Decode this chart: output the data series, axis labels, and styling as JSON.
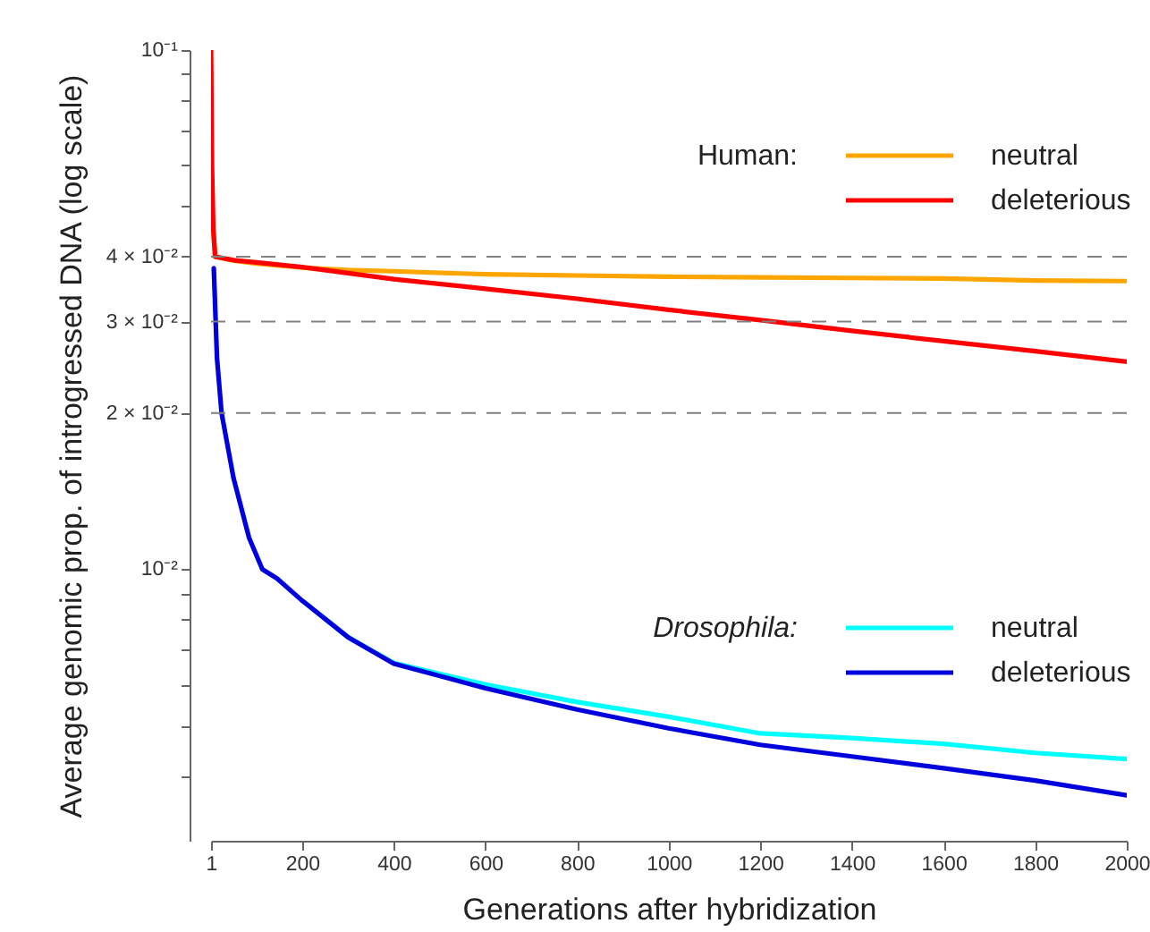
{
  "chart_data": {
    "type": "line",
    "xlabel": "Generations after hybridization",
    "ylabel": "Average genomic prop. of introgressed DNA (log scale)",
    "log": "y",
    "xlim": [
      1,
      2000
    ],
    "xticks": [
      1,
      200,
      400,
      600,
      800,
      1000,
      1200,
      1400,
      1600,
      1800,
      2000
    ],
    "ylim": [
      0.003,
      0.1
    ],
    "yticks": [
      {
        "value": 0.1,
        "label": "10⁻¹"
      },
      {
        "value": 0.09,
        "label": null
      },
      {
        "value": 0.08,
        "label": null
      },
      {
        "value": 0.07,
        "label": null
      },
      {
        "value": 0.06,
        "label": null
      },
      {
        "value": 0.05,
        "label": null
      },
      {
        "value": 0.04,
        "label": "4 × 10⁻²"
      },
      {
        "value": 0.03,
        "label": "3 × 10⁻²"
      },
      {
        "value": 0.02,
        "label": "2 × 10⁻²"
      },
      {
        "value": 0.01,
        "label": "10⁻²"
      },
      {
        "value": 0.009,
        "label": null
      },
      {
        "value": 0.008,
        "label": null
      },
      {
        "value": 0.007,
        "label": null
      },
      {
        "value": 0.006,
        "label": null
      },
      {
        "value": 0.005,
        "label": null
      },
      {
        "value": 0.004,
        "label": null
      }
    ],
    "ref_lines": [
      {
        "axis": "y",
        "value": 0.04,
        "color": "#808080",
        "line_style": "dashed"
      },
      {
        "axis": "y",
        "value": 0.03,
        "color": "#808080",
        "line_style": "dashed"
      },
      {
        "axis": "y",
        "value": 0.02,
        "color": "#808080",
        "line_style": "dashed"
      }
    ],
    "annotations": [
      "Human:",
      "Drosophila:"
    ],
    "legend": "right",
    "grid": false,
    "marker": "none",
    "line_style": "solid",
    "series": [
      {
        "name": "neutral",
        "color": "#ffa500",
        "x": [
          6,
          10,
          50,
          100,
          200,
          300,
          400,
          600,
          800,
          1000,
          1200,
          1400,
          1600,
          1800,
          2000
        ],
        "values": [
          0.045,
          0.04,
          0.0393,
          0.0388,
          0.0381,
          0.0377,
          0.0375,
          0.037,
          0.0368,
          0.0366,
          0.0365,
          0.0364,
          0.0363,
          0.036,
          0.0359
        ]
      },
      {
        "name": "deleterious",
        "color": "#ff0000",
        "x": [
          1,
          3,
          6,
          10,
          50,
          100,
          200,
          400,
          600,
          800,
          1000,
          1200,
          1400,
          1600,
          1800,
          2000
        ],
        "values": [
          0.1,
          0.06,
          0.045,
          0.04,
          0.0394,
          0.039,
          0.0382,
          0.0362,
          0.0347,
          0.0332,
          0.0316,
          0.0302,
          0.0288,
          0.0275,
          0.0263,
          0.0251
        ]
      },
      {
        "name": "neutral",
        "color": "#00ffff",
        "x": [
          200,
          300,
          400,
          600,
          800,
          1000,
          1200,
          1400,
          1600,
          1800,
          2000
        ],
        "values": [
          0.0087,
          0.0074,
          0.0066,
          0.006,
          0.00555,
          0.0052,
          0.00483,
          0.00473,
          0.00461,
          0.00443,
          0.00431
        ]
      },
      {
        "name": "deleterious",
        "color": "#0000dd",
        "x": [
          7,
          14,
          24,
          50,
          84,
          113,
          145,
          200,
          300,
          400,
          600,
          800,
          1000,
          1200,
          1400,
          1600,
          1800,
          2000
        ],
        "values": [
          0.038,
          0.0255,
          0.02,
          0.015,
          0.0115,
          0.01,
          0.0096,
          0.0087,
          0.0074,
          0.00658,
          0.0059,
          0.00537,
          0.00494,
          0.00459,
          0.00436,
          0.00414,
          0.00392,
          0.00367
        ]
      }
    ]
  }
}
